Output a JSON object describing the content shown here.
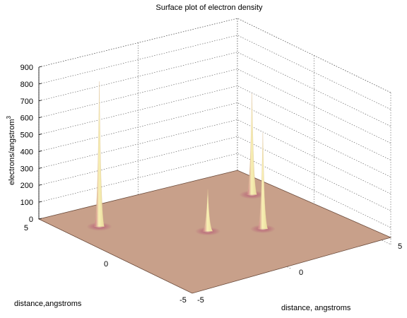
{
  "chart_data": {
    "type": "surface",
    "title": "Surface plot of electron density",
    "xlabel": "distance, angstroms",
    "ylabel": "distance,angstroms",
    "zlabel": "electrons/angstrom",
    "zlabel_superscript": "3",
    "xlim": [
      -5,
      5
    ],
    "ylim": [
      -5,
      5
    ],
    "zlim": [
      0,
      900
    ],
    "x_ticks": [
      "-5",
      "0",
      "5"
    ],
    "y_ticks": [
      "-5",
      "0",
      "5"
    ],
    "z_ticks": [
      "0",
      "100",
      "200",
      "300",
      "400",
      "500",
      "600",
      "700",
      "800",
      "900"
    ],
    "grid": true,
    "peaks": [
      {
        "x": -3.5,
        "y": 3.0,
        "z": 860
      },
      {
        "x": -0.2,
        "y": 0.2,
        "z": 250
      },
      {
        "x": 1.8,
        "y": -0.8,
        "z": 570
      },
      {
        "x": 3.8,
        "y": 2.5,
        "z": 600
      }
    ],
    "surface_color": "#c8a08a",
    "peak_color": "#f8f0b4",
    "base_glow_color": "#b05070"
  }
}
